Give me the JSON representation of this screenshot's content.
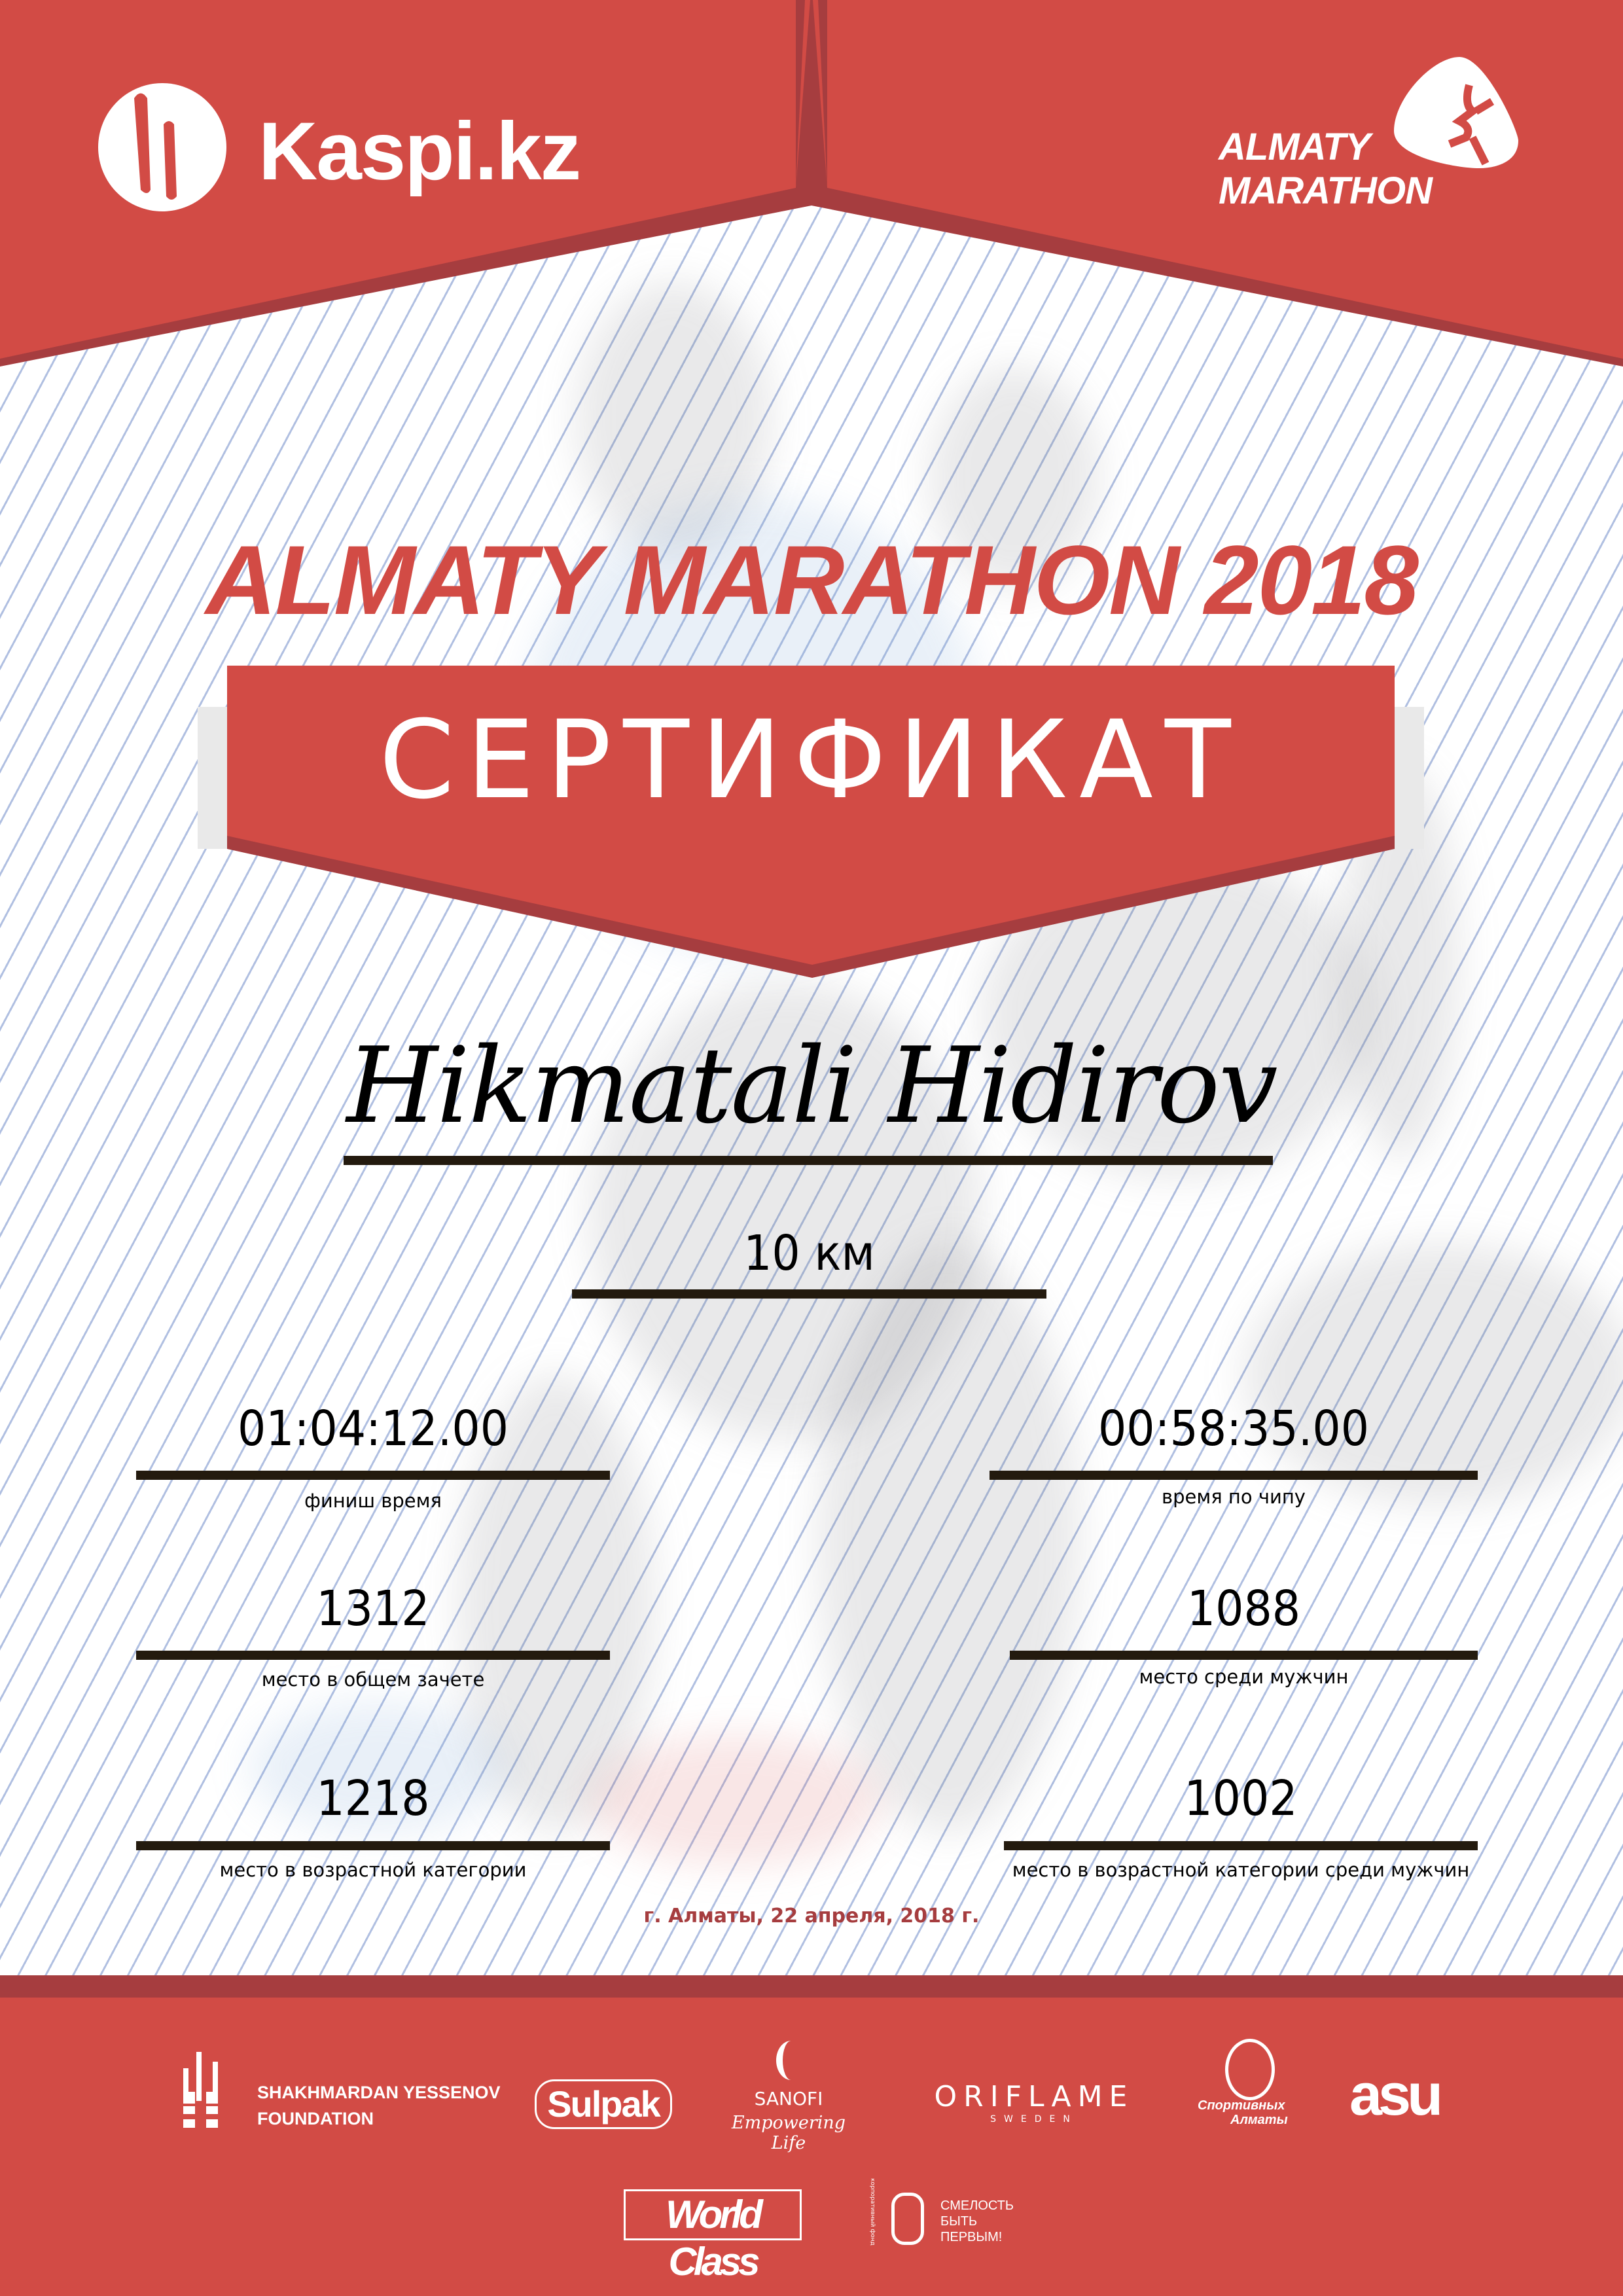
{
  "colors": {
    "brand_red": "#D24B45",
    "dark_red": "#A63D3F",
    "line_dark": "#231A0E"
  },
  "header": {
    "kaspi_logo": {
      "text": "Kaspi.kz",
      "icon": "kaspi-family-icon"
    },
    "almaty_logo": {
      "line1": "ALMATY",
      "line2": "MARATHON",
      "icon": "runner-icon"
    }
  },
  "event_title": "ALMATY MARATHON 2018",
  "certificate_label": "СЕРТИФИКАТ",
  "participant_name": "Hikmatali Hidirov",
  "distance": "10 км",
  "results": [
    {
      "value": "01:04:12.00",
      "label": "финиш время"
    },
    {
      "value": "00:58:35.00",
      "label": "время по чипу"
    },
    {
      "value": "1312",
      "label": "место в общем зачете"
    },
    {
      "value": "1088",
      "label": "место среди мужчин"
    },
    {
      "value": "1218",
      "label": "место в возрастной категории"
    },
    {
      "value": "1002",
      "label": "место в возрастной категории среди мужчин"
    }
  ],
  "date_place": "г. Алматы, 22 апреля, 2018 г.",
  "sponsors": {
    "yessenov": {
      "line1": "SHAKHMARDAN YESSENOV",
      "line2": "FOUNDATION"
    },
    "sulpak": "Sulpak",
    "sanofi": {
      "name": "SANOFI",
      "tagline": "Empowering Life"
    },
    "oriflame": {
      "name": "ORIFLAME",
      "sub": "SWEDEN"
    },
    "sportivnyh": {
      "line1": "Спортивных",
      "line2": "Алматы"
    },
    "asu": "asu",
    "worldclass": "World Class",
    "smelost": {
      "line1": "СМЕЛОСТЬ",
      "line2": "БЫТЬ",
      "line3": "ПЕРВЫМ!",
      "ring": "корпоративный фонд"
    }
  }
}
